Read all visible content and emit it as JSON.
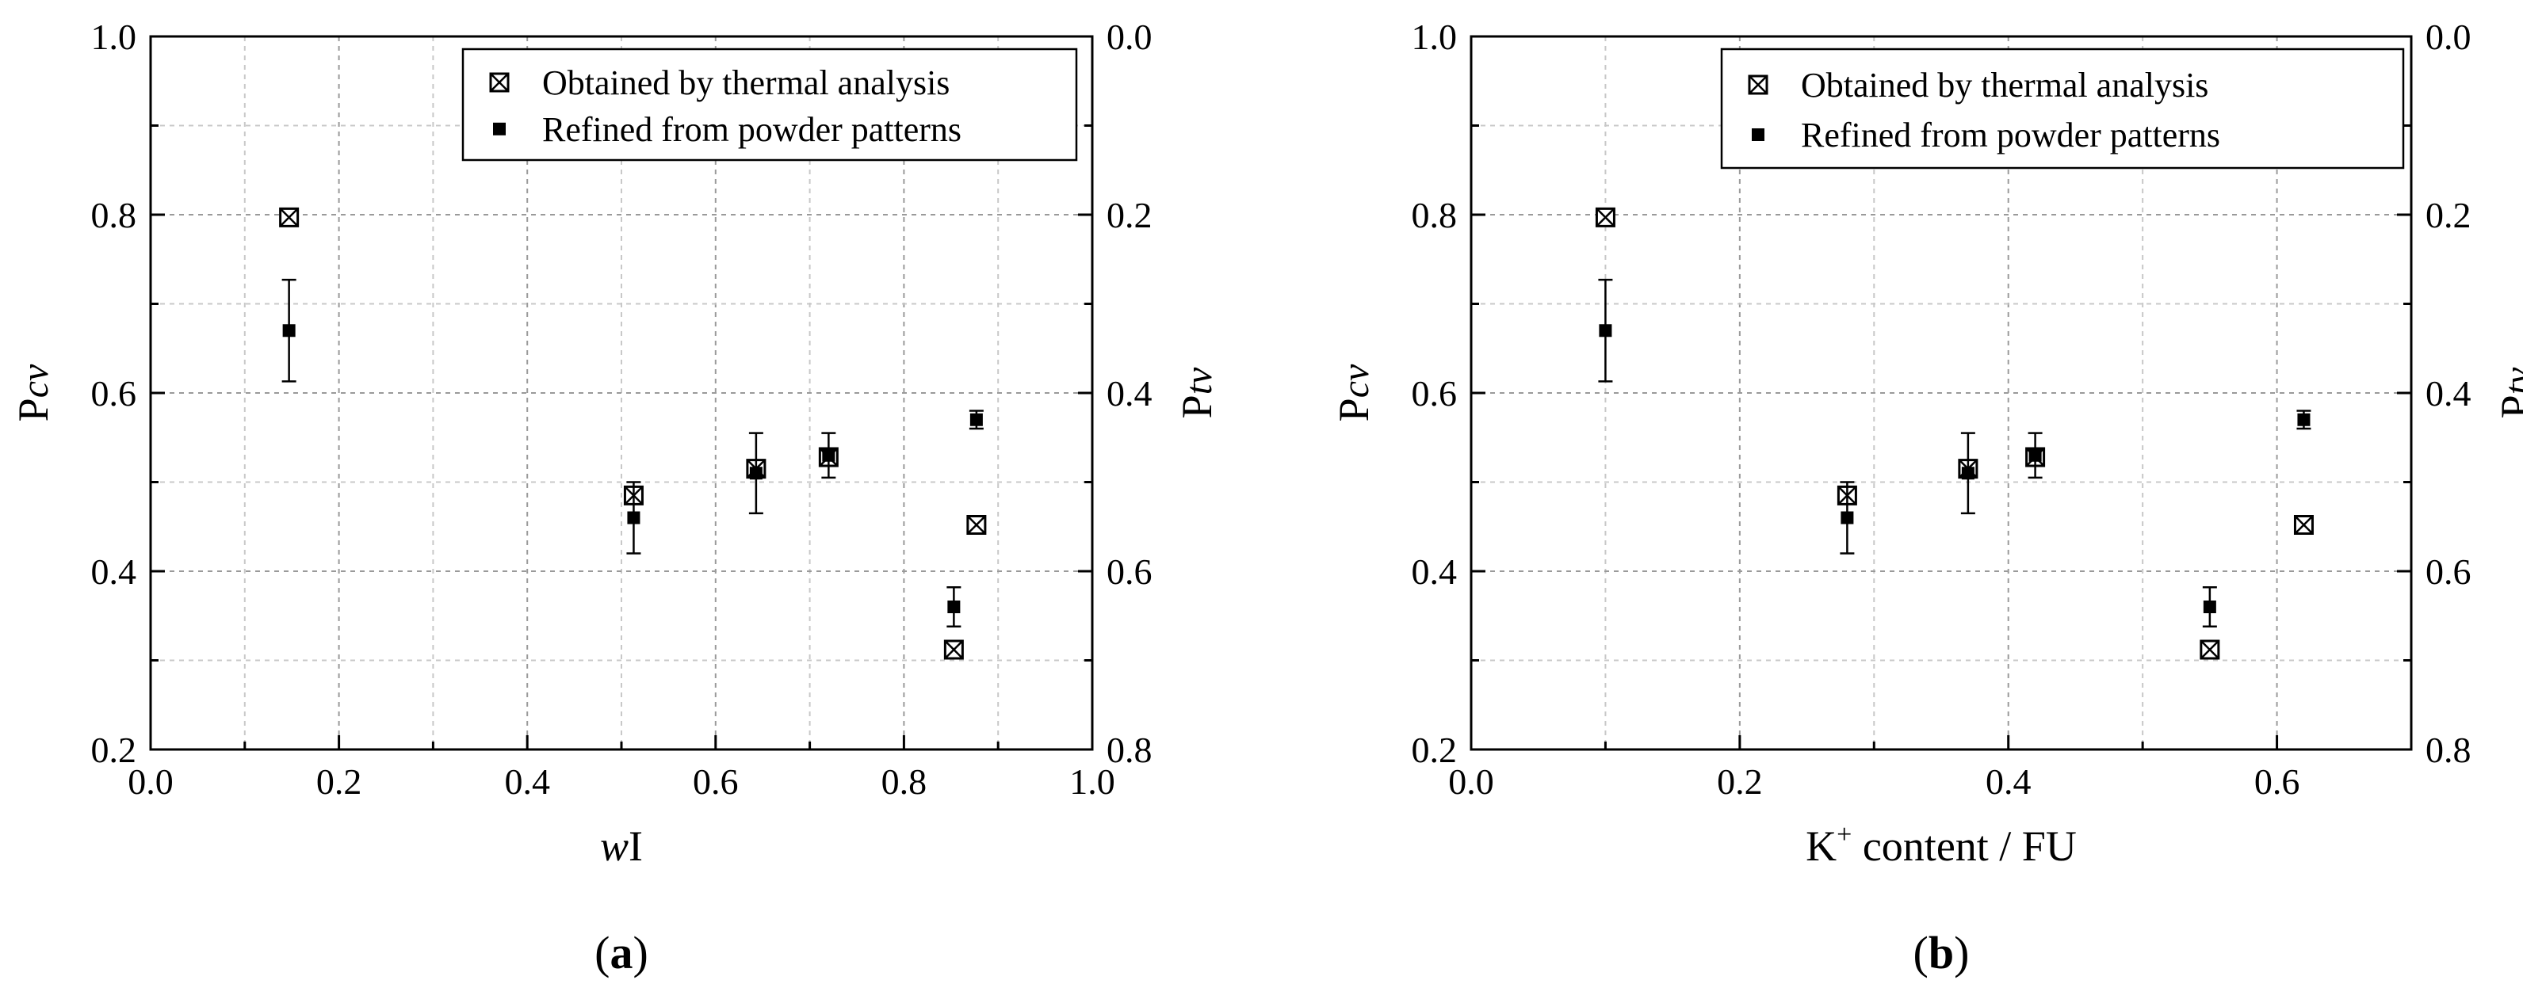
{
  "chart_data": [
    {
      "type": "scatter",
      "panel_label": "(a)",
      "panel_letter": "a",
      "xlabel_parts": [
        "w",
        "I"
      ],
      "ylabel_left_parts": [
        "P",
        "cv"
      ],
      "ylabel_right_parts": [
        "P",
        "tv"
      ],
      "xlim": [
        0.0,
        1.0
      ],
      "ylim": [
        0.2,
        1.0
      ],
      "y2lim": [
        0.0,
        0.8
      ],
      "y2_inverted": true,
      "xticks": [
        "0.0",
        "0.2",
        "0.4",
        "0.6",
        "0.8",
        "1.0"
      ],
      "yticks": [
        "0.2",
        "0.4",
        "0.6",
        "0.8",
        "1.0"
      ],
      "y2ticks": [
        "0.0",
        "0.2",
        "0.4",
        "0.6",
        "0.8"
      ],
      "grid": true,
      "legend_position": "top-right",
      "series": [
        {
          "name": "Obtained by thermal analysis",
          "marker": "boxed-x",
          "points": [
            {
              "x": 0.147,
              "y": 0.797
            },
            {
              "x": 0.513,
              "y": 0.485
            },
            {
              "x": 0.643,
              "y": 0.515
            },
            {
              "x": 0.72,
              "y": 0.528
            },
            {
              "x": 0.853,
              "y": 0.312
            },
            {
              "x": 0.877,
              "y": 0.452
            }
          ]
        },
        {
          "name": "Refined from powder patterns",
          "marker": "filled-square",
          "points": [
            {
              "x": 0.147,
              "y": 0.67,
              "err": 0.057
            },
            {
              "x": 0.513,
              "y": 0.46,
              "err": 0.04
            },
            {
              "x": 0.643,
              "y": 0.51,
              "err": 0.045
            },
            {
              "x": 0.72,
              "y": 0.53,
              "err": 0.025
            },
            {
              "x": 0.853,
              "y": 0.36,
              "err": 0.022
            },
            {
              "x": 0.877,
              "y": 0.57,
              "err": 0.01
            }
          ]
        }
      ]
    },
    {
      "type": "scatter",
      "panel_label": "(b)",
      "panel_letter": "b",
      "xlabel_parts": [
        "K",
        "+",
        " content / FU"
      ],
      "ylabel_left_parts": [
        "P",
        "cv"
      ],
      "ylabel_right_parts": [
        "P",
        "tv"
      ],
      "xlim": [
        0.0,
        0.7
      ],
      "ylim": [
        0.2,
        1.0
      ],
      "y2lim": [
        0.0,
        0.8
      ],
      "y2_inverted": true,
      "xticks": [
        "0.0",
        "0.2",
        "0.4",
        "0.6"
      ],
      "yticks": [
        "0.2",
        "0.4",
        "0.6",
        "0.8",
        "1.0"
      ],
      "y2ticks": [
        "0.0",
        "0.2",
        "0.4",
        "0.6",
        "0.8"
      ],
      "grid": true,
      "legend_position": "top-right",
      "series": [
        {
          "name": "Obtained by thermal analysis",
          "marker": "boxed-x",
          "points": [
            {
              "x": 0.1,
              "y": 0.797
            },
            {
              "x": 0.28,
              "y": 0.485
            },
            {
              "x": 0.37,
              "y": 0.515
            },
            {
              "x": 0.42,
              "y": 0.528
            },
            {
              "x": 0.55,
              "y": 0.312
            },
            {
              "x": 0.62,
              "y": 0.452
            }
          ]
        },
        {
          "name": "Refined from powder patterns",
          "marker": "filled-square",
          "points": [
            {
              "x": 0.1,
              "y": 0.67,
              "err": 0.057
            },
            {
              "x": 0.28,
              "y": 0.46,
              "err": 0.04
            },
            {
              "x": 0.37,
              "y": 0.51,
              "err": 0.045
            },
            {
              "x": 0.42,
              "y": 0.53,
              "err": 0.025
            },
            {
              "x": 0.55,
              "y": 0.36,
              "err": 0.022
            },
            {
              "x": 0.62,
              "y": 0.57,
              "err": 0.01
            }
          ]
        }
      ]
    }
  ]
}
